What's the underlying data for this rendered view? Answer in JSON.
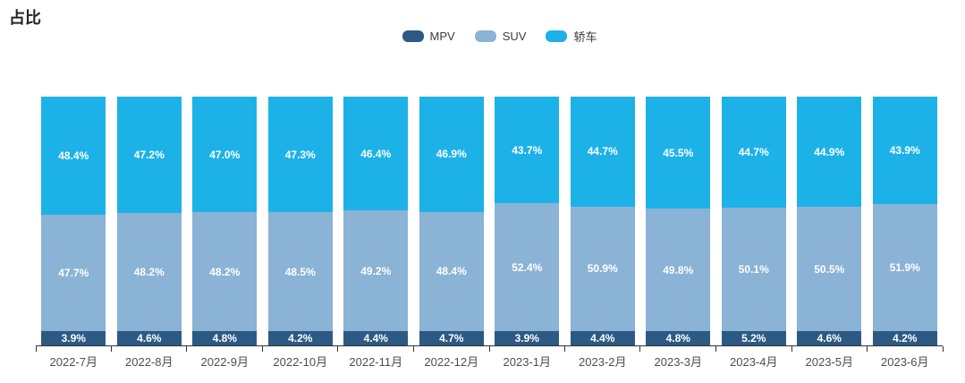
{
  "title": "占比",
  "legend": {
    "items": [
      {
        "label": "MPV",
        "color": "#2c5a84"
      },
      {
        "label": "SUV",
        "color": "#8ab3d5"
      },
      {
        "label": "轿车",
        "color": "#1cb2e8"
      }
    ]
  },
  "chart_data": {
    "type": "bar",
    "stacked": true,
    "orientation": "vertical",
    "title": "占比",
    "xlabel": "",
    "ylabel": "",
    "ylim": [
      0,
      100
    ],
    "grid": false,
    "y_axis_visible": false,
    "legend_position": "top-center",
    "value_suffix": "%",
    "categories": [
      "2022-7月",
      "2022-8月",
      "2022-9月",
      "2022-10月",
      "2022-11月",
      "2022-12月",
      "2023-1月",
      "2023-2月",
      "2023-3月",
      "2023-4月",
      "2023-5月",
      "2023-6月"
    ],
    "series": [
      {
        "name": "MPV",
        "semantic": "mpv",
        "color": "#2c5a84",
        "values": [
          3.9,
          4.6,
          4.8,
          4.2,
          4.4,
          4.7,
          3.9,
          4.4,
          4.8,
          5.2,
          4.6,
          4.2
        ]
      },
      {
        "name": "SUV",
        "semantic": "suv",
        "color": "#8ab3d5",
        "values": [
          47.7,
          48.2,
          48.2,
          48.5,
          49.2,
          48.4,
          52.4,
          50.9,
          49.8,
          50.1,
          50.5,
          51.9
        ]
      },
      {
        "name": "轿车",
        "semantic": "sedan",
        "color": "#1cb2e8",
        "values": [
          48.4,
          47.2,
          47.0,
          47.3,
          46.4,
          46.9,
          43.7,
          44.7,
          45.5,
          44.7,
          44.9,
          43.9
        ]
      }
    ],
    "label_format": "one_decimal_percent",
    "axis_line_color": "#333333"
  }
}
